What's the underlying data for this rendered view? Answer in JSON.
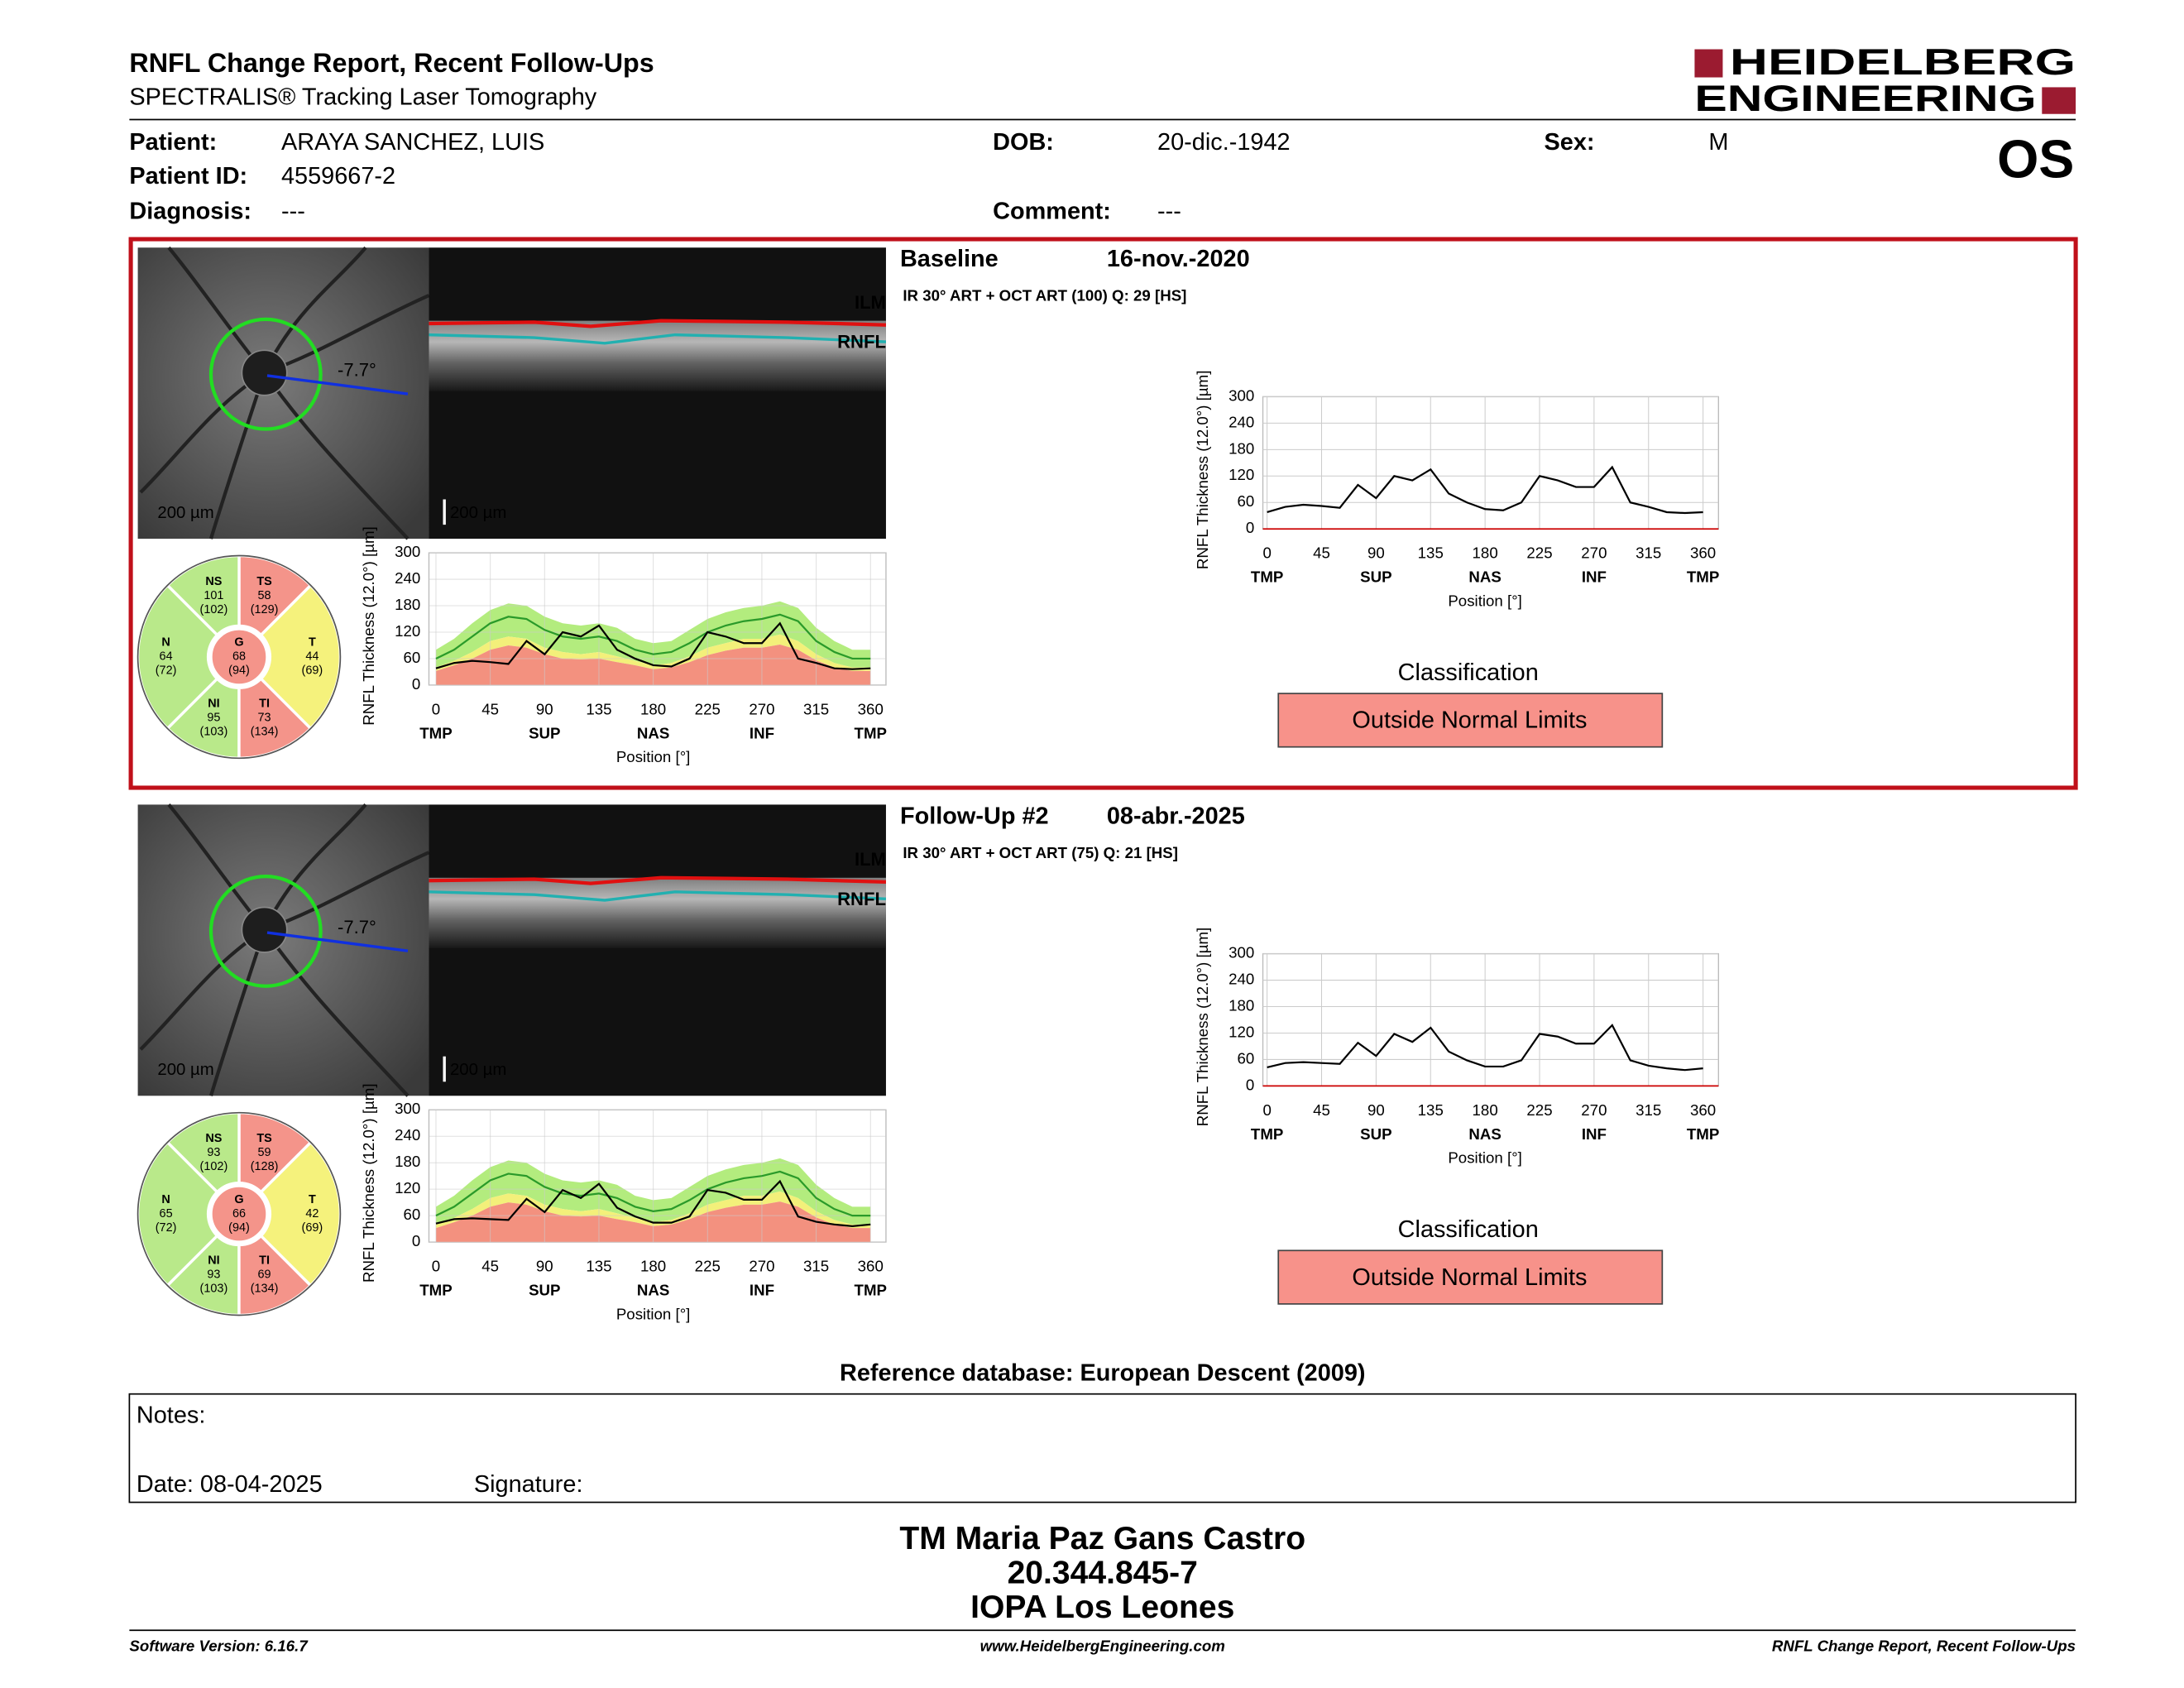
{
  "header": {
    "title": "RNFL Change Report, Recent Follow-Ups",
    "subtitle": "SPECTRALIS® Tracking Laser Tomography",
    "logo_line1": "HEIDELBERG",
    "logo_line2": "ENGINEERING",
    "eye": "OS"
  },
  "patient": [
    {
      "label": "Patient:",
      "value": "ARAYA SANCHEZ, LUIS"
    },
    {
      "label": "Patient ID:",
      "value": "4559667-2"
    },
    {
      "label": "Diagnosis:",
      "value": "---"
    },
    {
      "label": "DOB:",
      "value": "20-dic.-1942"
    },
    {
      "label": "Comment:",
      "value": "---"
    },
    {
      "label": "Sex:",
      "value": "M"
    }
  ],
  "exams": [
    {
      "label": "Baseline",
      "date": "16-nov.-2020",
      "scan_info": "IR 30° ART + OCT ART (100) Q: 29 [HS]",
      "scale_bar": "200 µm",
      "angle": "-7.7°",
      "ilm": "ILM",
      "rnfl": "RNFL",
      "sectors": [
        {
          "name": "T",
          "value": 44,
          "normal": "(69)",
          "color": "#f5f27c"
        },
        {
          "name": "TS",
          "value": 58,
          "normal": "(129)",
          "color": "#f4948a"
        },
        {
          "name": "NS",
          "value": 101,
          "normal": "(102)",
          "color": "#b9e98a"
        },
        {
          "name": "N",
          "value": 64,
          "normal": "(72)",
          "color": "#b9e98a"
        },
        {
          "name": "NI",
          "value": 95,
          "normal": "(103)",
          "color": "#b9e98a"
        },
        {
          "name": "TI",
          "value": 73,
          "normal": "(134)",
          "color": "#f4948a"
        },
        {
          "name": "G",
          "value": 68,
          "normal": "(94)",
          "color": "#f4948a"
        }
      ],
      "chart": {
        "type": "line",
        "ylabel": "RNFL Thickness (12.0°) [µm]",
        "xlabel": "Position [°]",
        "xlim": [
          0,
          360
        ],
        "xticks": [
          0,
          45,
          90,
          135,
          180,
          225,
          270,
          315,
          360
        ],
        "ylim": [
          0,
          300
        ],
        "yticks": [
          0,
          60,
          120,
          180,
          240,
          300
        ],
        "xcategories": [
          {
            "value": 0,
            "label": "TMP"
          },
          {
            "value": 90,
            "label": "SUP"
          },
          {
            "value": 180,
            "label": "NAS"
          },
          {
            "value": 270,
            "label": "INF"
          },
          {
            "value": 360,
            "label": "TMP"
          }
        ],
        "x": [
          0,
          15,
          30,
          45,
          60,
          75,
          90,
          105,
          120,
          135,
          150,
          165,
          180,
          195,
          210,
          225,
          240,
          255,
          270,
          285,
          300,
          315,
          330,
          345,
          360
        ],
        "values": [
          38,
          50,
          55,
          52,
          48,
          100,
          70,
          120,
          110,
          135,
          80,
          60,
          45,
          42,
          60,
          120,
          110,
          95,
          95,
          140,
          60,
          50,
          38,
          36,
          38
        ],
        "normal_mean": [
          60,
          80,
          110,
          140,
          155,
          150,
          125,
          110,
          105,
          110,
          100,
          80,
          70,
          75,
          95,
          120,
          135,
          145,
          150,
          160,
          145,
          100,
          75,
          60,
          60
        ],
        "normal_upper": [
          80,
          105,
          140,
          170,
          185,
          180,
          155,
          140,
          135,
          140,
          130,
          105,
          95,
          100,
          125,
          150,
          165,
          175,
          180,
          190,
          175,
          130,
          100,
          80,
          80
        ],
        "normal_lower": [
          40,
          55,
          75,
          100,
          110,
          105,
          85,
          75,
          70,
          75,
          65,
          55,
          45,
          50,
          65,
          85,
          95,
          105,
          105,
          115,
          100,
          70,
          50,
          40,
          40
        ],
        "borderline_lower": [
          32,
          45,
          60,
          80,
          90,
          85,
          70,
          60,
          58,
          60,
          52,
          45,
          36,
          40,
          52,
          68,
          78,
          85,
          85,
          92,
          80,
          56,
          40,
          32,
          32
        ]
      },
      "classification_title": "Classification",
      "classification": "Outside Normal Limits"
    },
    {
      "label": "Follow-Up #2",
      "date": "08-abr.-2025",
      "scan_info": "IR 30° ART + OCT ART (75) Q: 21 [HS]",
      "scale_bar": "200 µm",
      "angle": "-7.7°",
      "ilm": "ILM",
      "rnfl": "RNFL",
      "sectors": [
        {
          "name": "T",
          "value": 42,
          "normal": "(69)",
          "color": "#f5f27c"
        },
        {
          "name": "TS",
          "value": 59,
          "normal": "(128)",
          "color": "#f4948a"
        },
        {
          "name": "NS",
          "value": 93,
          "normal": "(102)",
          "color": "#b9e98a"
        },
        {
          "name": "N",
          "value": 65,
          "normal": "(72)",
          "color": "#b9e98a"
        },
        {
          "name": "NI",
          "value": 93,
          "normal": "(103)",
          "color": "#b9e98a"
        },
        {
          "name": "TI",
          "value": 69,
          "normal": "(134)",
          "color": "#f4948a"
        },
        {
          "name": "G",
          "value": 66,
          "normal": "(94)",
          "color": "#f4948a"
        }
      ],
      "chart": {
        "type": "line",
        "ylabel": "RNFL Thickness (12.0°) [µm]",
        "xlabel": "Position [°]",
        "xlim": [
          0,
          360
        ],
        "xticks": [
          0,
          45,
          90,
          135,
          180,
          225,
          270,
          315,
          360
        ],
        "ylim": [
          0,
          300
        ],
        "yticks": [
          0,
          60,
          120,
          180,
          240,
          300
        ],
        "xcategories": [
          {
            "value": 0,
            "label": "TMP"
          },
          {
            "value": 90,
            "label": "SUP"
          },
          {
            "value": 180,
            "label": "NAS"
          },
          {
            "value": 270,
            "label": "INF"
          },
          {
            "value": 360,
            "label": "TMP"
          }
        ],
        "x": [
          0,
          15,
          30,
          45,
          60,
          75,
          90,
          105,
          120,
          135,
          150,
          165,
          180,
          195,
          210,
          225,
          240,
          255,
          270,
          285,
          300,
          315,
          330,
          345,
          360
        ],
        "values": [
          42,
          52,
          54,
          52,
          50,
          98,
          68,
          118,
          100,
          132,
          78,
          58,
          44,
          44,
          58,
          118,
          112,
          96,
          96,
          138,
          58,
          46,
          40,
          36,
          40
        ],
        "normal_mean": [
          60,
          80,
          110,
          140,
          155,
          150,
          125,
          110,
          105,
          110,
          100,
          80,
          70,
          75,
          95,
          120,
          135,
          145,
          150,
          160,
          145,
          100,
          75,
          60,
          60
        ],
        "normal_upper": [
          80,
          105,
          140,
          170,
          185,
          180,
          155,
          140,
          135,
          140,
          130,
          105,
          95,
          100,
          125,
          150,
          165,
          175,
          180,
          190,
          175,
          130,
          100,
          80,
          80
        ],
        "normal_lower": [
          40,
          55,
          75,
          100,
          110,
          105,
          85,
          75,
          70,
          75,
          65,
          55,
          45,
          50,
          65,
          85,
          95,
          105,
          105,
          115,
          100,
          70,
          50,
          40,
          40
        ],
        "borderline_lower": [
          32,
          45,
          60,
          80,
          90,
          85,
          70,
          60,
          58,
          60,
          52,
          45,
          36,
          40,
          52,
          68,
          78,
          85,
          85,
          92,
          80,
          56,
          40,
          32,
          32
        ]
      },
      "classification_title": "Classification",
      "classification": "Outside Normal Limits"
    }
  ],
  "reference": "Reference database: European Descent (2009)",
  "notes": {
    "label": "Notes:",
    "date": "Date: 08-04-2025",
    "signature": "Signature:"
  },
  "signature_block": [
    "TM Maria Paz Gans Castro",
    "20.344.845-7",
    "IOPA Los Leones"
  ],
  "footer": {
    "left": "Software Version: 6.16.7",
    "center": "www.HeidelbergEngineering.com",
    "right": "RNFL Change Report, Recent Follow-Ups"
  }
}
